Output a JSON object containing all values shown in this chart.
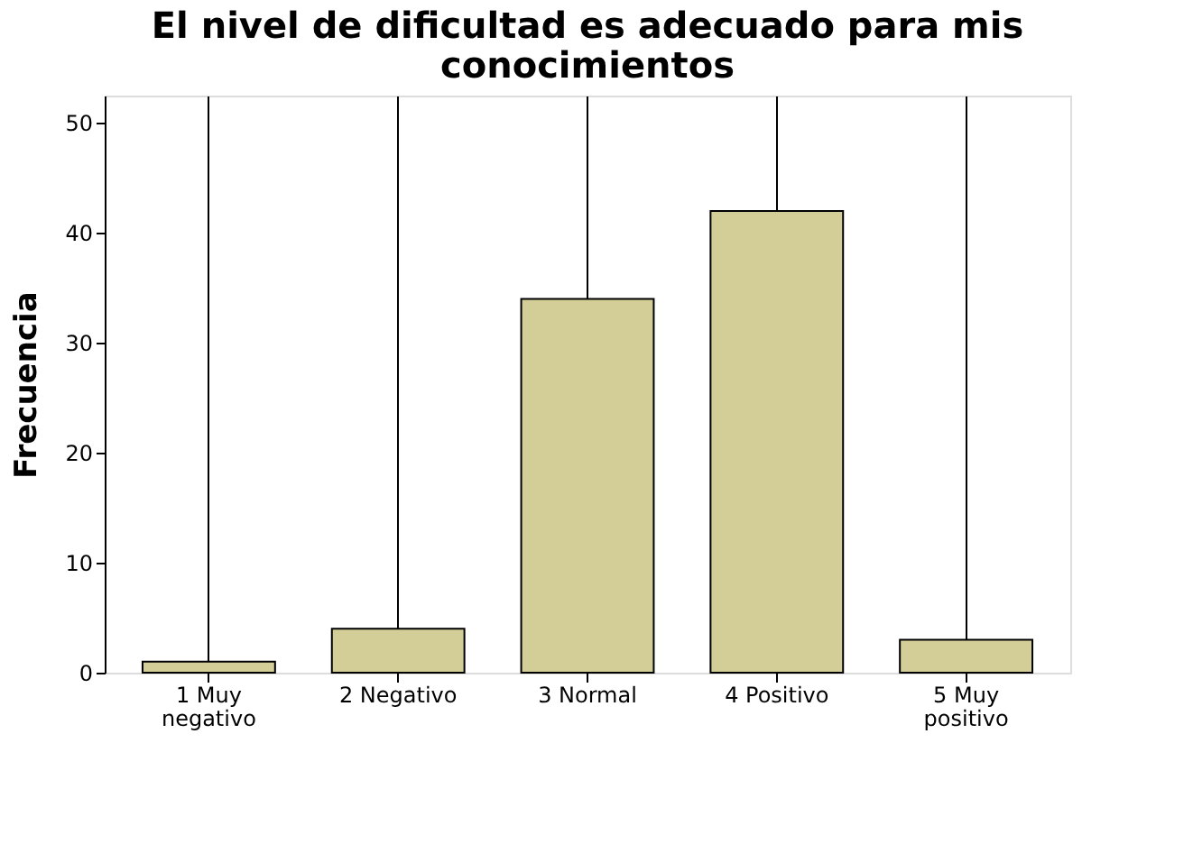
{
  "chart_data": {
    "type": "bar",
    "title": "El nivel de dificultad es adecuado para mis conocimientos",
    "ylabel": "Frecuencia",
    "categories": [
      "1 Muy negativo",
      "2 Negativo",
      "3 Normal",
      "4 Positivo",
      "5 Muy positivo"
    ],
    "values": [
      1,
      4,
      34,
      42,
      3
    ],
    "color": "#d3ce97",
    "ylim": [
      0,
      52.5
    ],
    "yticks": [
      0,
      10,
      20,
      30,
      40,
      50
    ],
    "grid": "x"
  }
}
